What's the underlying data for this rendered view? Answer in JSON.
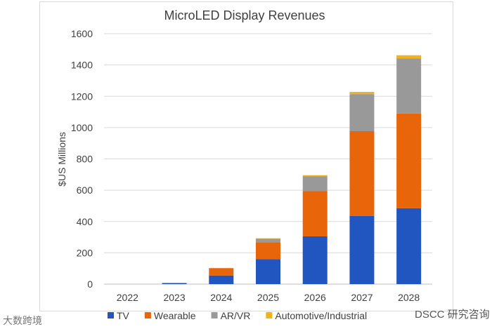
{
  "chart_data": {
    "type": "bar",
    "stacked": true,
    "title": "MicroLED Display Revenues",
    "xlabel": "",
    "ylabel": "$US  Millions",
    "ylim": [
      0,
      1600
    ],
    "yticks": [
      0,
      200,
      400,
      600,
      800,
      1000,
      1200,
      1400,
      1600
    ],
    "grid": true,
    "legend_position": "bottom",
    "categories": [
      "2022",
      "2023",
      "2024",
      "2025",
      "2026",
      "2027",
      "2028"
    ],
    "series": [
      {
        "name": "TV",
        "color": "#2155c0",
        "values": [
          0,
          7,
          55,
          160,
          305,
          435,
          485
        ]
      },
      {
        "name": "Wearable",
        "color": "#e8650a",
        "values": [
          0,
          0,
          47,
          108,
          289,
          542,
          605
        ]
      },
      {
        "name": "AR/VR",
        "color": "#999999",
        "values": [
          0,
          0,
          0,
          21,
          94,
          237,
          351
        ]
      },
      {
        "name": "Automotive/Industrial",
        "color": "#f2b21b",
        "values": [
          0,
          0,
          0,
          4,
          8,
          14,
          21
        ]
      }
    ]
  },
  "watermarks": {
    "left": "大数跨境",
    "right": "DSCC 研究咨询"
  }
}
